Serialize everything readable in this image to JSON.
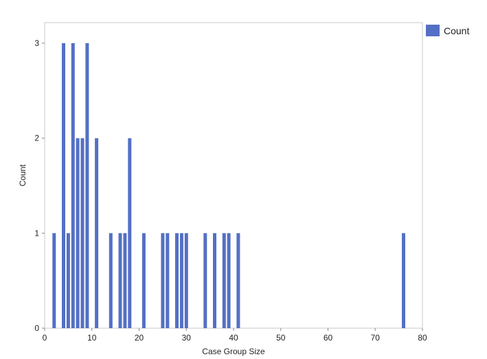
{
  "chart_data": {
    "type": "bar",
    "xlabel": "Case Group Size",
    "ylabel": "Count",
    "xlim": [
      0,
      80
    ],
    "ylim": [
      0,
      3
    ],
    "x_ticks": [
      0,
      10,
      20,
      30,
      40,
      50,
      60,
      70,
      80
    ],
    "y_ticks": [
      0,
      1,
      2,
      3
    ],
    "grid": false,
    "legend_position": "top-right",
    "bar_color": "#5470c4",
    "series": [
      {
        "name": "Count",
        "points": [
          {
            "x": 2,
            "y": 1
          },
          {
            "x": 4,
            "y": 3
          },
          {
            "x": 5,
            "y": 1
          },
          {
            "x": 6,
            "y": 3
          },
          {
            "x": 7,
            "y": 2
          },
          {
            "x": 8,
            "y": 2
          },
          {
            "x": 9,
            "y": 3
          },
          {
            "x": 11,
            "y": 2
          },
          {
            "x": 14,
            "y": 1
          },
          {
            "x": 16,
            "y": 1
          },
          {
            "x": 17,
            "y": 1
          },
          {
            "x": 18,
            "y": 2
          },
          {
            "x": 21,
            "y": 1
          },
          {
            "x": 25,
            "y": 1
          },
          {
            "x": 26,
            "y": 1
          },
          {
            "x": 28,
            "y": 1
          },
          {
            "x": 29,
            "y": 1
          },
          {
            "x": 30,
            "y": 1
          },
          {
            "x": 34,
            "y": 1
          },
          {
            "x": 36,
            "y": 1
          },
          {
            "x": 38,
            "y": 1
          },
          {
            "x": 39,
            "y": 1
          },
          {
            "x": 41,
            "y": 1
          },
          {
            "x": 76,
            "y": 1
          }
        ]
      }
    ]
  }
}
